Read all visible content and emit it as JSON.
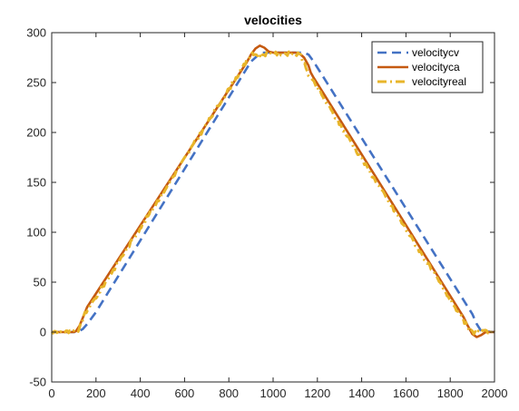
{
  "chart_data": {
    "type": "line",
    "title": "velocities",
    "xlabel": "",
    "ylabel": "",
    "xlim": [
      0,
      2000
    ],
    "ylim": [
      -50,
      300
    ],
    "xticks": [
      0,
      200,
      400,
      600,
      800,
      1000,
      1200,
      1400,
      1600,
      1800,
      2000
    ],
    "yticks": [
      -50,
      0,
      50,
      100,
      150,
      200,
      250,
      300
    ],
    "grid": false,
    "legend_position": "top-right",
    "series": [
      {
        "name": "velocitycv",
        "color": "#4472C4",
        "style": "dashed",
        "x": [
          0,
          100,
          120,
          140,
          160,
          200,
          900,
          940,
          960,
          1000,
          1140,
          1160,
          1180,
          1220,
          1900,
          1920,
          1940,
          2000
        ],
        "y": [
          0,
          0,
          0.5,
          3,
          8,
          20,
          271,
          279,
          280,
          280,
          280,
          278,
          272,
          258,
          18,
          8,
          1,
          0
        ]
      },
      {
        "name": "velocityca",
        "color": "#C55A11",
        "style": "solid",
        "x": [
          0,
          100,
          110,
          125,
          140,
          160,
          880,
          900,
          920,
          940,
          960,
          980,
          1000,
          1100,
          1120,
          1140,
          1160,
          1170,
          1180,
          1860,
          1880,
          1900,
          1920,
          1940,
          1960,
          2000
        ],
        "y": [
          0,
          0,
          1,
          6,
          14,
          25,
          270,
          278,
          284,
          287,
          285,
          281,
          280,
          280,
          279,
          275,
          267,
          260,
          256,
          15,
          6,
          -2,
          -5,
          -3,
          0,
          0
        ]
      },
      {
        "name": "velocityreal",
        "color": "#E8B52A",
        "style": "dash-dot",
        "x": [
          0,
          100,
          120,
          150,
          200,
          880,
          900,
          1000,
          1100,
          1125,
          1160,
          1870,
          1880,
          1900,
          1920,
          1940,
          2000
        ],
        "y": [
          0,
          0,
          2,
          18,
          35,
          271,
          278,
          279,
          279,
          277,
          258,
          8,
          3,
          0,
          0,
          0,
          0
        ]
      }
    ]
  }
}
